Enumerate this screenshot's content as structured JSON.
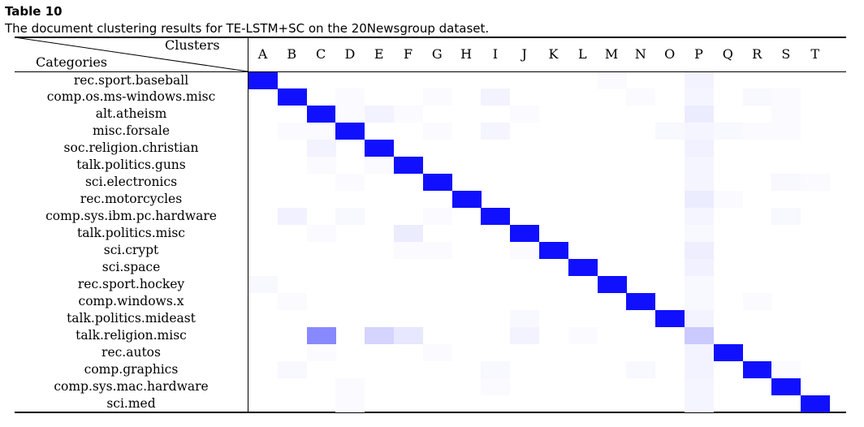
{
  "table_label": "Table 10",
  "caption": "The document clustering results for TE-LSTM+SC on the 20Newsgroup dataset.",
  "header": {
    "clusters": "Clusters",
    "categories": "Categories"
  },
  "colors": {
    "accent": "#1010ff"
  },
  "chart_data": {
    "type": "heatmap",
    "xlabel": "Clusters",
    "ylabel": "Categories",
    "x": [
      "A",
      "B",
      "C",
      "D",
      "E",
      "F",
      "G",
      "H",
      "I",
      "J",
      "K",
      "L",
      "M",
      "N",
      "O",
      "P",
      "Q",
      "R",
      "S",
      "T"
    ],
    "y": [
      "rec.sport.baseball",
      "comp.os.ms-windows.misc",
      "alt.atheism",
      "misc.forsale",
      "soc.religion.christian",
      "talk.politics.guns",
      "sci.electronics",
      "rec.motorcycles",
      "comp.sys.ibm.pc.hardware",
      "talk.politics.misc",
      "sci.crypt",
      "sci.space",
      "rec.sport.hockey",
      "comp.windows.x",
      "talk.politics.mideast",
      "talk.religion.misc",
      "rec.autos",
      "comp.graphics",
      "comp.sys.mac.hardware",
      "sci.med"
    ],
    "values": [
      [
        1,
        0,
        0,
        0,
        0,
        0,
        0,
        0,
        0,
        0,
        0,
        0,
        0.02,
        0,
        0,
        0.05,
        0,
        0,
        0,
        0
      ],
      [
        0,
        1,
        0,
        0.02,
        0,
        0,
        0.02,
        0,
        0.05,
        0,
        0,
        0,
        0,
        0.02,
        0,
        0.04,
        0,
        0.03,
        0.02,
        0
      ],
      [
        0,
        0,
        1,
        0.02,
        0.05,
        0.02,
        0,
        0,
        0,
        0.02,
        0,
        0,
        0,
        0,
        0,
        0.08,
        0,
        0,
        0.02,
        0
      ],
      [
        0,
        0.02,
        0.02,
        1,
        0,
        0,
        0.02,
        0,
        0.04,
        0,
        0,
        0,
        0,
        0,
        0.03,
        0.04,
        0.03,
        0.02,
        0.02,
        0
      ],
      [
        0,
        0,
        0.05,
        0,
        1,
        0,
        0,
        0,
        0,
        0,
        0,
        0,
        0,
        0,
        0,
        0.06,
        0,
        0,
        0,
        0
      ],
      [
        0,
        0,
        0.02,
        0,
        0.02,
        1,
        0,
        0,
        0,
        0,
        0,
        0,
        0,
        0,
        0,
        0.04,
        0,
        0,
        0,
        0
      ],
      [
        0,
        0,
        0,
        0.02,
        0,
        0,
        1,
        0,
        0,
        0,
        0,
        0,
        0,
        0,
        0,
        0.04,
        0,
        0,
        0.03,
        0.02
      ],
      [
        0,
        0,
        0,
        0,
        0,
        0,
        0,
        1,
        0,
        0,
        0,
        0,
        0,
        0,
        0,
        0.08,
        0.02,
        0,
        0,
        0
      ],
      [
        0,
        0.06,
        0,
        0.03,
        0,
        0,
        0.02,
        0,
        1,
        0,
        0,
        0,
        0,
        0,
        0,
        0.04,
        0,
        0,
        0.03,
        0
      ],
      [
        0,
        0,
        0.02,
        0,
        0,
        0.08,
        0,
        0,
        0,
        1,
        0,
        0,
        0,
        0,
        0,
        0.03,
        0,
        0,
        0,
        0
      ],
      [
        0,
        0,
        0,
        0,
        0,
        0.02,
        0.02,
        0,
        0,
        0.02,
        1,
        0,
        0,
        0,
        0,
        0.07,
        0,
        0,
        0,
        0
      ],
      [
        0,
        0,
        0,
        0,
        0,
        0,
        0,
        0,
        0,
        0,
        0,
        1,
        0,
        0,
        0,
        0.06,
        0,
        0,
        0,
        0
      ],
      [
        0.03,
        0,
        0,
        0,
        0,
        0,
        0,
        0,
        0,
        0,
        0,
        0,
        1,
        0,
        0,
        0.03,
        0,
        0,
        0,
        0
      ],
      [
        0,
        0.02,
        0,
        0,
        0,
        0,
        0,
        0,
        0,
        0,
        0,
        0,
        0,
        1,
        0,
        0.03,
        0,
        0.02,
        0,
        0
      ],
      [
        0,
        0,
        0,
        0,
        0,
        0,
        0,
        0,
        0,
        0.03,
        0,
        0,
        0,
        0,
        1,
        0.05,
        0,
        0,
        0,
        0
      ],
      [
        0,
        0,
        0.5,
        0,
        0.18,
        0.1,
        0,
        0,
        0,
        0.05,
        0,
        0.02,
        0,
        0,
        0,
        0.22,
        0,
        0,
        0,
        0
      ],
      [
        0,
        0,
        0.02,
        0,
        0,
        0,
        0.02,
        0,
        0,
        0,
        0,
        0,
        0,
        0,
        0,
        0.05,
        1,
        0,
        0,
        0
      ],
      [
        0,
        0.03,
        0,
        0,
        0,
        0,
        0,
        0,
        0.03,
        0,
        0,
        0,
        0,
        0.03,
        0,
        0.05,
        0,
        1,
        0.02,
        0
      ],
      [
        0,
        0,
        0,
        0.02,
        0,
        0,
        0,
        0,
        0.02,
        0,
        0,
        0,
        0,
        0,
        0,
        0.04,
        0,
        0,
        1,
        0
      ],
      [
        0,
        0,
        0,
        0.02,
        0,
        0,
        0,
        0,
        0,
        0,
        0,
        0,
        0,
        0,
        0,
        0.04,
        0,
        0,
        0,
        1
      ]
    ]
  }
}
